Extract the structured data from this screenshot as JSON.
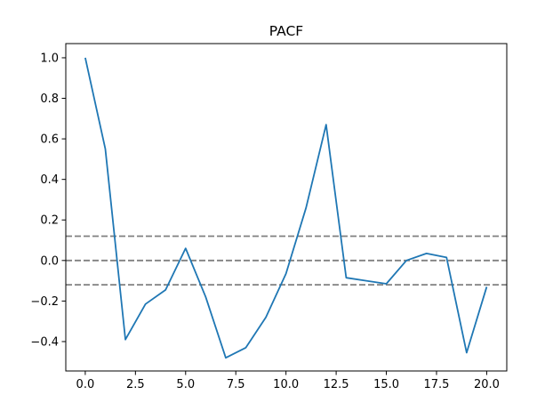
{
  "chart_data": {
    "type": "line",
    "title": "PACF",
    "xlabel": "",
    "ylabel": "",
    "xlim": [
      -0.97,
      21.0
    ],
    "ylim": [
      -0.545,
      1.07
    ],
    "x_ticks": [
      0.0,
      2.5,
      5.0,
      7.5,
      10.0,
      12.5,
      15.0,
      17.5,
      20.0
    ],
    "x_tick_labels": [
      "0.0",
      "2.5",
      "5.0",
      "7.5",
      "10.0",
      "12.5",
      "15.0",
      "17.5",
      "20.0"
    ],
    "y_ticks": [
      -0.4,
      -0.2,
      0.0,
      0.2,
      0.4,
      0.6,
      0.8,
      1.0
    ],
    "y_tick_labels": [
      "−0.4",
      "−0.2",
      "0.0",
      "0.2",
      "0.4",
      "0.6",
      "0.8",
      "1.0"
    ],
    "grid": false,
    "series": [
      {
        "color": "#1f77b4",
        "x": [
          0,
          1,
          2,
          3,
          4,
          5,
          6,
          7,
          8,
          9,
          10,
          11,
          12,
          13,
          14,
          15,
          16,
          17,
          18,
          19,
          20
        ],
        "values": [
          1.0,
          0.55,
          -0.39,
          -0.215,
          -0.145,
          0.06,
          -0.18,
          -0.48,
          -0.43,
          -0.28,
          -0.065,
          0.26,
          0.67,
          -0.085,
          -0.1,
          -0.115,
          0.0,
          0.035,
          0.015,
          -0.455,
          -0.13
        ]
      }
    ],
    "reference_lines": [
      {
        "y": 0.12,
        "style": "dashed",
        "color": "#808080"
      },
      {
        "y": 0.0,
        "style": "dashed",
        "color": "#808080"
      },
      {
        "y": -0.12,
        "style": "dashed",
        "color": "#808080"
      }
    ]
  }
}
